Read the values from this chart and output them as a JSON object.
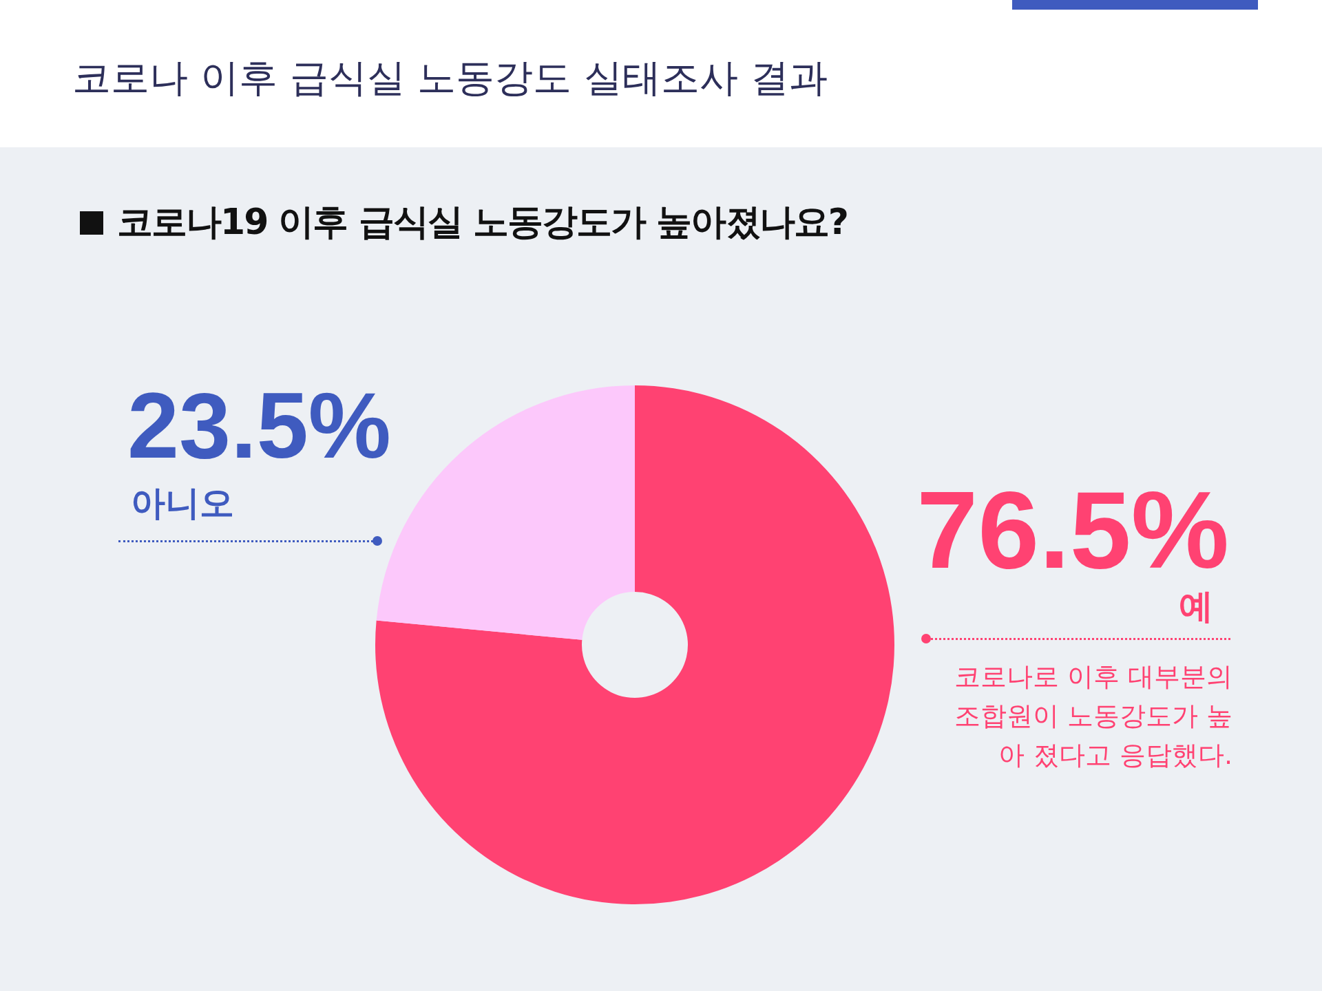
{
  "chart_data": {
    "type": "donut",
    "title": "코로나 이후 급식실 노동강도 실태조사 결과",
    "subtitle": "코로나19 이후 급식실 노동강도가 높아졌나요?",
    "categories": [
      "예",
      "아니오"
    ],
    "values": [
      76.5,
      23.5
    ],
    "colors": [
      "#ff4272",
      "#fcc8fb"
    ],
    "value_labels": [
      "76.5%",
      "23.5%"
    ],
    "legend": false,
    "annotations": [
      "코로나로 이후  대부분의 조합원이 노동강도가 높아 졌다고 응답했다."
    ]
  }
}
